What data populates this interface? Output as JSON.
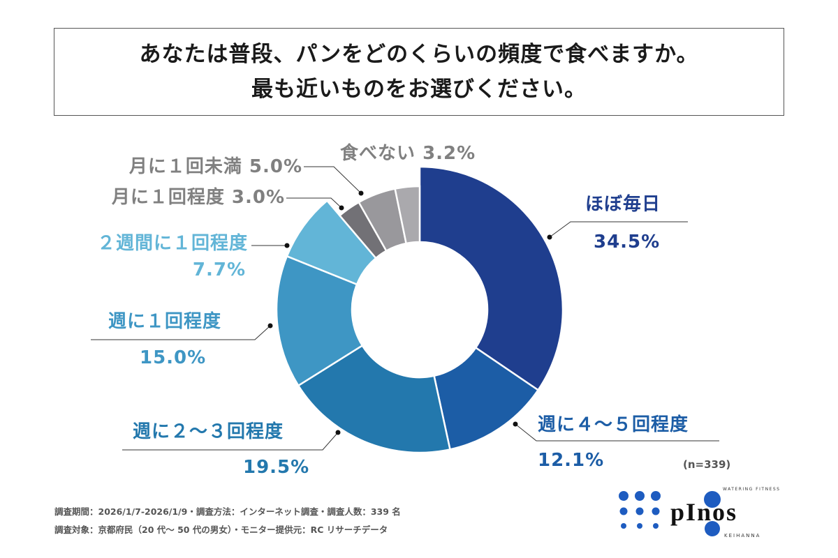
{
  "title": {
    "line1": "あなたは普段、パンをどのくらいの頻度で食べますか。",
    "line2": "最も近いものをお選びください。"
  },
  "chart_data": {
    "type": "pie",
    "variant": "donut",
    "start": "top, clockwise",
    "legend": "none (direct labels)",
    "slices": [
      {
        "label": "ほぼ毎日",
        "pct_label": "34.5%",
        "value": 34.5,
        "color": "#1f3e8e"
      },
      {
        "label": "週に４～５回程度",
        "pct_label": "12.1%",
        "value": 12.1,
        "color": "#1c5da6"
      },
      {
        "label": "週に２～３回程度",
        "pct_label": "19.5%",
        "value": 19.5,
        "color": "#2378ad"
      },
      {
        "label": "週に１回程度",
        "pct_label": "15.0%",
        "value": 15.0,
        "color": "#3e96c4"
      },
      {
        "label": "２週間に１回程度",
        "pct_label": "7.7%",
        "value": 7.7,
        "color": "#62b5d7"
      },
      {
        "label": "月に１回程度",
        "pct_label": "3.0%",
        "value": 3.0,
        "color": "#727176"
      },
      {
        "label": "月に１回未満",
        "pct_label": "5.0%",
        "value": 5.0,
        "color": "#99989c"
      },
      {
        "label": "食べない",
        "pct_label": "3.2%",
        "value": 3.2,
        "color": "#aaa9ad"
      }
    ]
  },
  "sample_size": "(n=339)",
  "footer": {
    "line1": "調査期間：2026/1/7-2026/1/9・調査方法：インターネット調査・調査人数：339 名",
    "line2": "調査対象：京都府民（20 代～ 50 代の男女）・モニター提供元：RC リサーチデータ"
  },
  "logo": {
    "text": "pinos",
    "tagline": "WATERING FITNESS",
    "sub": "KEIHANNA",
    "color": "#1e5cc0"
  }
}
